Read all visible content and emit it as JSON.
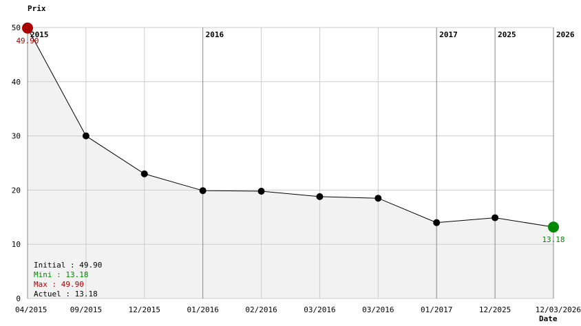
{
  "chart_data": {
    "type": "line",
    "y_label": "Prix",
    "x_label": "Date",
    "categories": [
      "04/2015",
      "09/2015",
      "12/2015",
      "01/2016",
      "02/2016",
      "03/2016",
      "03/2016",
      "01/2017",
      "12/2025",
      "12/03/2026"
    ],
    "year_labels": [
      "2015",
      null,
      null,
      "2016",
      null,
      null,
      null,
      "2017",
      "2025",
      "2026"
    ],
    "values": [
      49.9,
      30,
      23,
      19.9,
      19.8,
      18.8,
      18.5,
      14,
      14.9,
      13.18
    ],
    "value_labels": [
      "49.90",
      null,
      null,
      null,
      null,
      null,
      null,
      null,
      null,
      "13.18"
    ],
    "color": "#000000",
    "max_color": "#aa0000",
    "min_color": "#008800",
    "area_color": "#f2f2f2",
    "ylim": [
      0,
      50
    ],
    "yticks": [
      0,
      10,
      20,
      30,
      40,
      50
    ],
    "grid": true,
    "legend": [
      {
        "text": "Initial : 49.90",
        "color": "#000000"
      },
      {
        "text": "Mini : 13.18",
        "color": "#008800"
      },
      {
        "text": "Max : 49.90",
        "color": "#aa0000"
      },
      {
        "text": "Actuel : 13.18",
        "color": "#000000"
      }
    ]
  }
}
